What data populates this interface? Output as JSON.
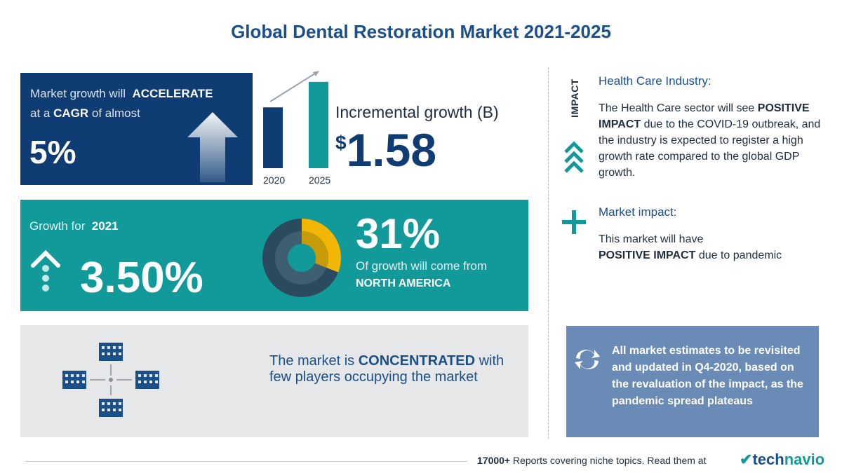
{
  "title": "Global Dental Restoration Market 2021-2025",
  "cagr": {
    "line1_prefix": "Market growth will",
    "line1_bold": "ACCELERATE",
    "line2_prefix": "at a",
    "line2_bold": "CAGR",
    "line2_suffix": "of almost",
    "value": "5%"
  },
  "incremental": {
    "bar_labels": [
      "2020",
      "2025"
    ],
    "bar_heights": [
      0.62,
      0.88
    ],
    "label": "Incremental growth (B)",
    "currency": "$",
    "value": "1.58"
  },
  "growth_2021": {
    "label": "Growth for",
    "year": "2021",
    "value": "3.50%",
    "share_pct": "31%",
    "share_fraction": 0.31,
    "share_text": "Of growth will come from",
    "region": "NORTH AMERICA"
  },
  "concentration": {
    "prefix": "The market is",
    "bold": "CONCENTRATED",
    "suffix": "with few players occupying the market"
  },
  "impact": {
    "vertical_label": "IMPACT",
    "health_title": "Health Care Industry:",
    "health_prefix": "The Health Care sector will see",
    "health_bold": "POSITIVE IMPACT",
    "health_suffix": "due to the COVID-19 outbreak, and the industry is expected to register a high growth rate compared to the global GDP growth.",
    "market_title": "Market impact:",
    "market_prefix": "This market will have",
    "market_bold": "POSITIVE IMPACT",
    "market_suffix": "due to pandemic"
  },
  "note": {
    "text": "All market estimates to be revisited and updated in Q4-2020, based on the revaluation of the impact, as the pandemic spread plateaus"
  },
  "footer": {
    "count": "17000+",
    "text": "Reports covering niche topics. Read them at",
    "logo_a": "tech",
    "logo_b": "navio"
  },
  "colors": {
    "navy": "#0f3d73",
    "teal": "#12999a",
    "gold": "#f2b705",
    "slate": "#6a8bb6"
  }
}
